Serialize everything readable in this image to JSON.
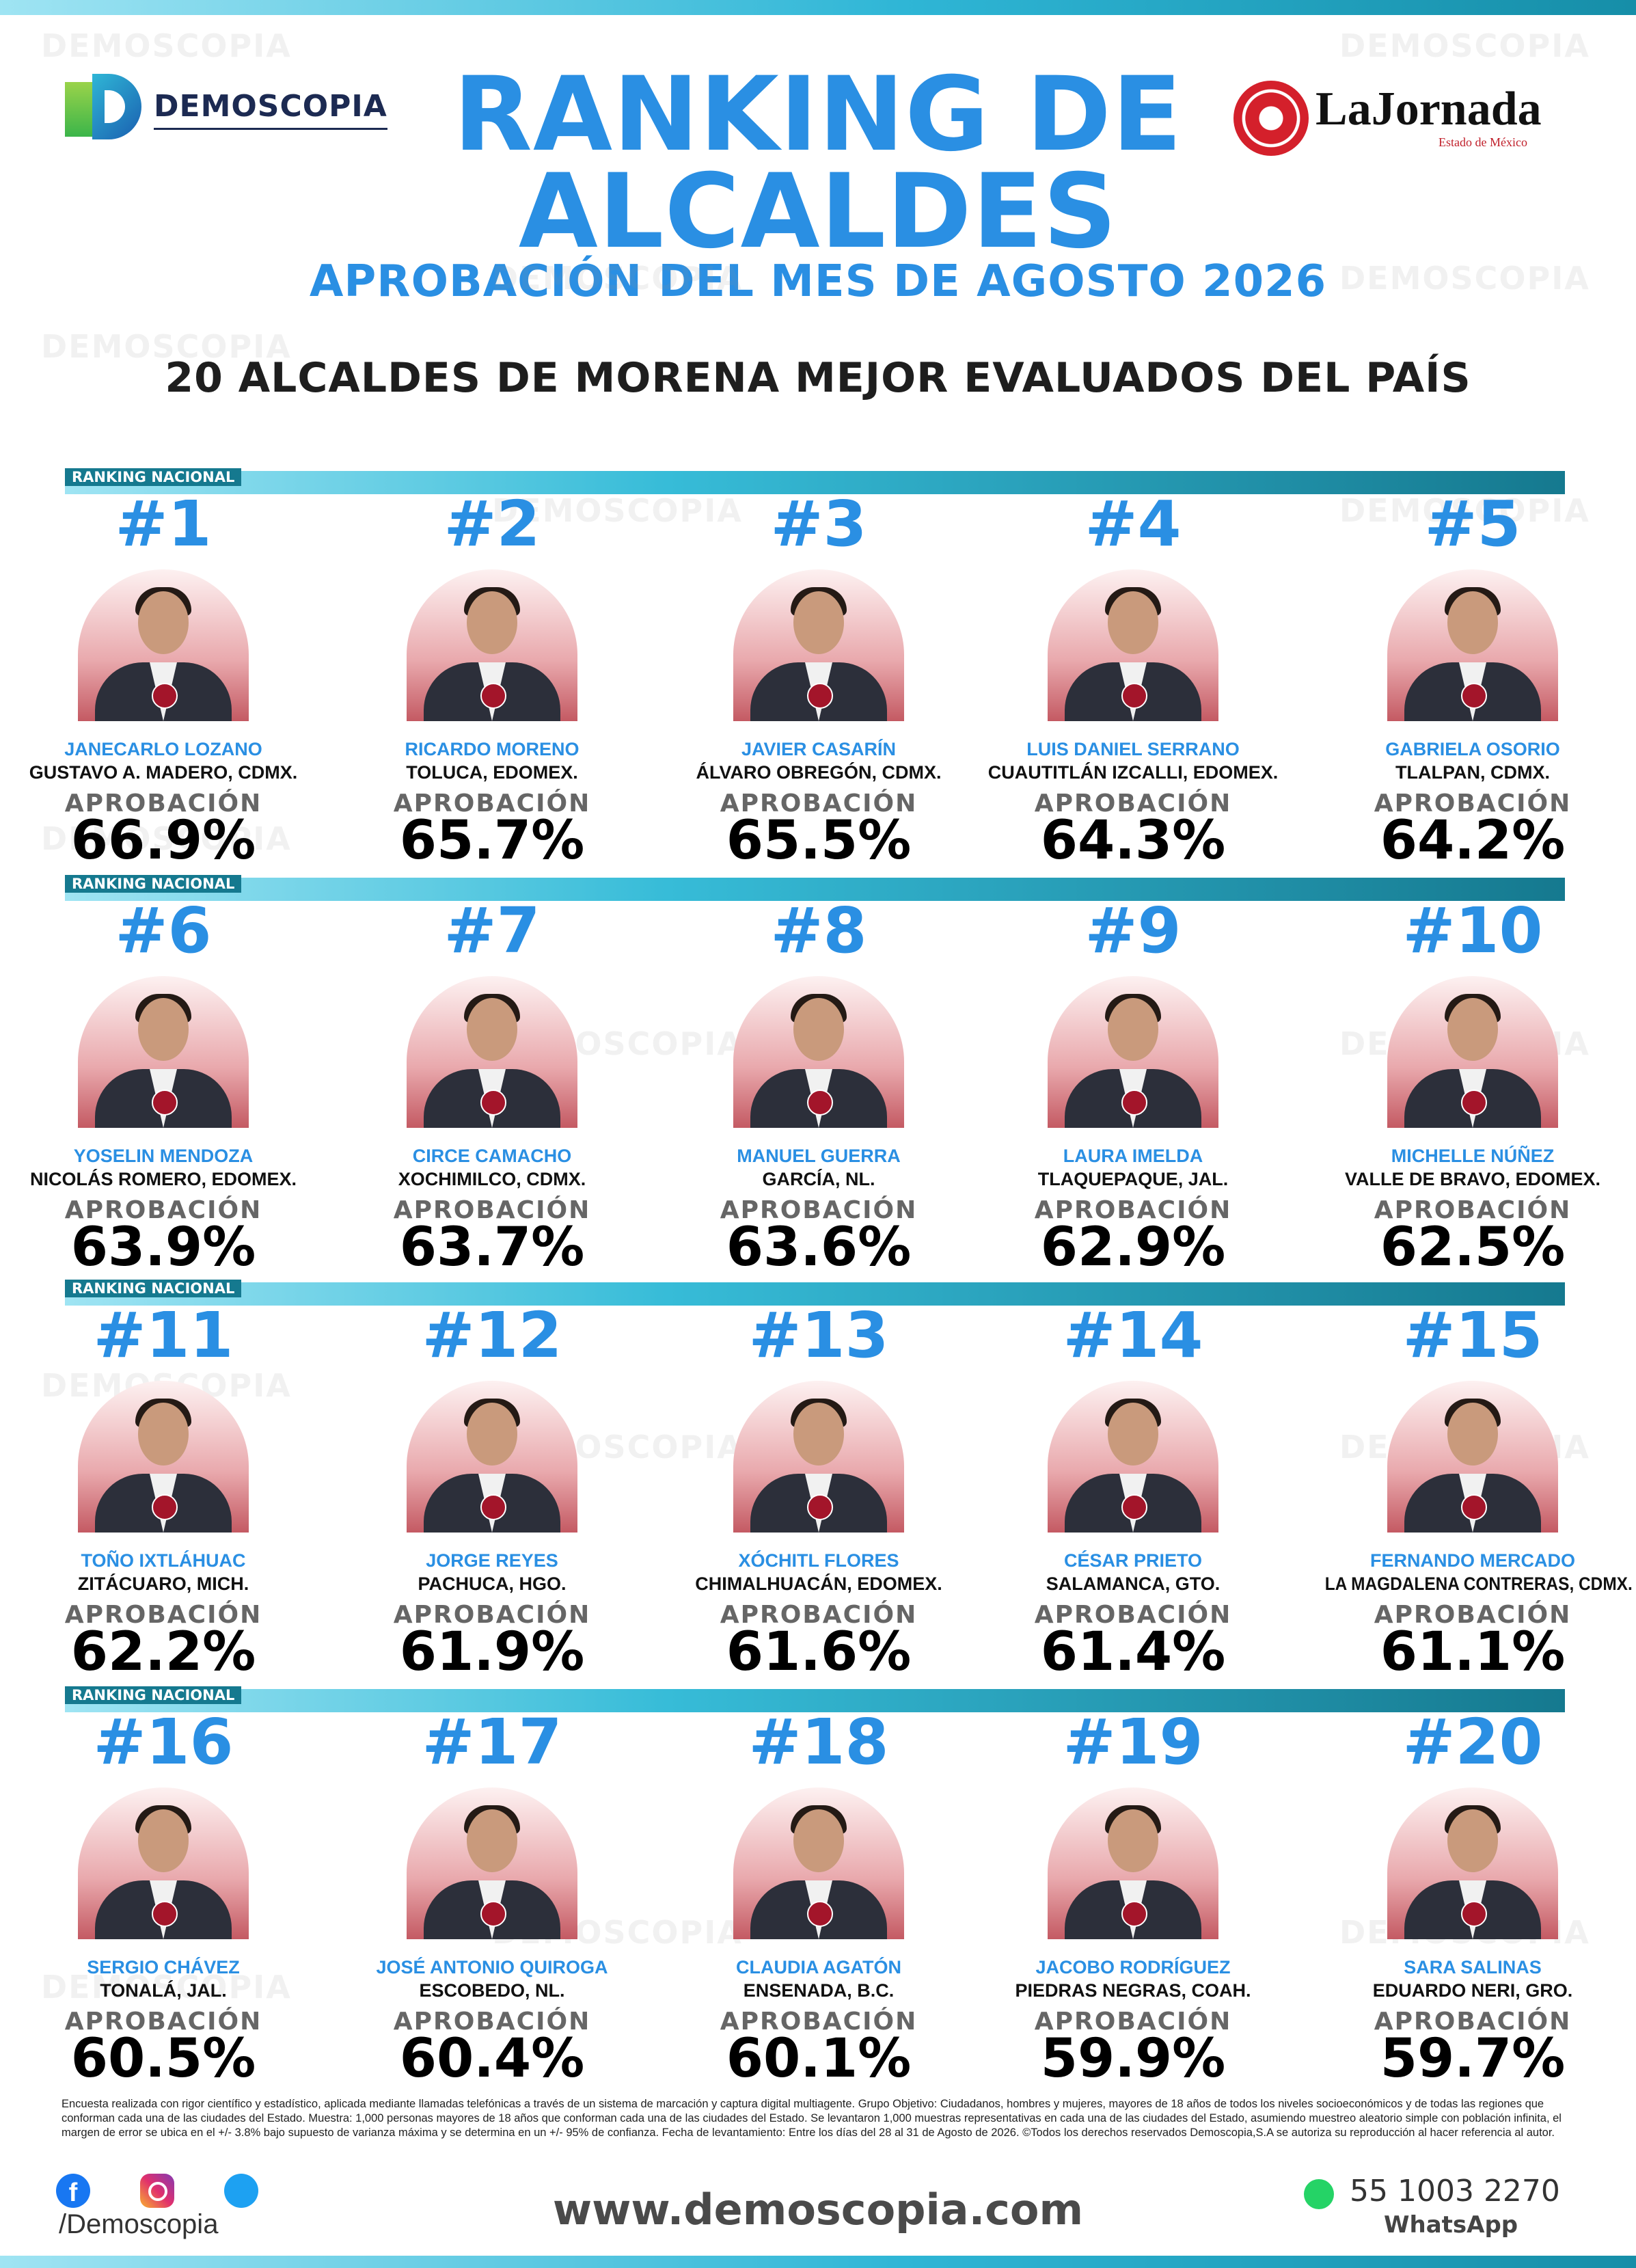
{
  "header": {
    "title_line1": "RANKING DE",
    "title_line2": "ALCALDES",
    "subtitle": "APROBACIÓN DEL MES DE AGOSTO 2026",
    "headline": "20 ALCALDES DE MORENA MEJOR EVALUADOS DEL PAÍS",
    "brand_left": "DEMOSCOPIA",
    "brand_right": "LaJornada",
    "brand_right_sub": "Estado de México"
  },
  "watermark": "DEMOSCOPIA",
  "sections": [
    {
      "label": "RANKING NACIONAL",
      "entries": [
        {
          "rank": "#1",
          "name": "JANECARLO LOZANO",
          "place": "GUSTAVO A. MADERO, CDMX.",
          "approval_label": "APROBACIÓN",
          "approval": "66.9%"
        },
        {
          "rank": "#2",
          "name": "RICARDO MORENO",
          "place": "TOLUCA, EDOMEX.",
          "approval_label": "APROBACIÓN",
          "approval": "65.7%"
        },
        {
          "rank": "#3",
          "name": "JAVIER CASARÍN",
          "place": "ÁLVARO OBREGÓN, CDMX.",
          "approval_label": "APROBACIÓN",
          "approval": "65.5%"
        },
        {
          "rank": "#4",
          "name": "LUIS DANIEL SERRANO",
          "place": "CUAUTITLÁN IZCALLI, EDOMEX.",
          "approval_label": "APROBACIÓN",
          "approval": "64.3%"
        },
        {
          "rank": "#5",
          "name": "GABRIELA OSORIO",
          "place": "TLALPAN, CDMX.",
          "approval_label": "APROBACIÓN",
          "approval": "64.2%"
        }
      ]
    },
    {
      "label": "RANKING NACIONAL",
      "entries": [
        {
          "rank": "#6",
          "name": "YOSELIN MENDOZA",
          "place": "NICOLÁS ROMERO, EDOMEX.",
          "approval_label": "APROBACIÓN",
          "approval": "63.9%"
        },
        {
          "rank": "#7",
          "name": "CIRCE CAMACHO",
          "place": "XOCHIMILCO, CDMX.",
          "approval_label": "APROBACIÓN",
          "approval": "63.7%"
        },
        {
          "rank": "#8",
          "name": "MANUEL GUERRA",
          "place": "GARCÍA, NL.",
          "approval_label": "APROBACIÓN",
          "approval": "63.6%"
        },
        {
          "rank": "#9",
          "name": "LAURA IMELDA",
          "place": "TLAQUEPAQUE, JAL.",
          "approval_label": "APROBACIÓN",
          "approval": "62.9%"
        },
        {
          "rank": "#10",
          "name": "MICHELLE NÚÑEZ",
          "place": "VALLE DE BRAVO, EDOMEX.",
          "approval_label": "APROBACIÓN",
          "approval": "62.5%"
        }
      ]
    },
    {
      "label": "RANKING NACIONAL",
      "entries": [
        {
          "rank": "#11",
          "name": "TOÑO IXTLÁHUAC",
          "place": "ZITÁCUARO, MICH.",
          "approval_label": "APROBACIÓN",
          "approval": "62.2%"
        },
        {
          "rank": "#12",
          "name": "JORGE REYES",
          "place": "PACHUCA, HGO.",
          "approval_label": "APROBACIÓN",
          "approval": "61.9%"
        },
        {
          "rank": "#13",
          "name": "XÓCHITL FLORES",
          "place": "CHIMALHUACÁN, EDOMEX.",
          "approval_label": "APROBACIÓN",
          "approval": "61.6%"
        },
        {
          "rank": "#14",
          "name": "CÉSAR PRIETO",
          "place": "SALAMANCA, GTO.",
          "approval_label": "APROBACIÓN",
          "approval": "61.4%"
        },
        {
          "rank": "#15",
          "name": "FERNANDO MERCADO",
          "place": "LA MAGDALENA CONTRERAS, CDMX.",
          "approval_label": "APROBACIÓN",
          "approval": "61.1%"
        }
      ]
    },
    {
      "label": "RANKING NACIONAL",
      "entries": [
        {
          "rank": "#16",
          "name": "SERGIO CHÁVEZ",
          "place": "TONALÁ, JAL.",
          "approval_label": "APROBACIÓN",
          "approval": "60.5%"
        },
        {
          "rank": "#17",
          "name": "JOSÉ ANTONIO QUIROGA",
          "place": "ESCOBEDO, NL.",
          "approval_label": "APROBACIÓN",
          "approval": "60.4%"
        },
        {
          "rank": "#18",
          "name": "CLAUDIA AGATÓN",
          "place": "ENSENADA, B.C.",
          "approval_label": "APROBACIÓN",
          "approval": "60.1%"
        },
        {
          "rank": "#19",
          "name": "JACOBO RODRÍGUEZ",
          "place": "PIEDRAS NEGRAS, COAH.",
          "approval_label": "APROBACIÓN",
          "approval": "59.9%"
        },
        {
          "rank": "#20",
          "name": "SARA SALINAS",
          "place": "EDUARDO NERI, GRO.",
          "approval_label": "APROBACIÓN",
          "approval": "59.7%"
        }
      ]
    }
  ],
  "footer": {
    "disclaimer": "Encuesta realizada con rigor científico y estadístico, aplicada mediante llamadas telefónicas a través de un sistema de marcación y captura digital multiagente. Grupo Objetivo: Ciudadanos, hombres y mujeres, mayores de 18 años de todos los niveles socioeconómicos y de todas las regiones que conforman cada una de las ciudades del Estado. Muestra: 1,000 personas mayores de 18 años que conforman cada una de las ciudades del Estado. Se levantaron 1,000 muestras representativas en cada una de las ciudades del Estado, asumiendo muestreo aleatorio simple con población infinita, el margen de error se ubica en el +/- 3.8% bajo supuesto de varianza máxima y se determina en un +/- 95% de confianza. Fecha de levantamiento: Entre los días del 28 al 31 de Agosto de 2026. ©Todos los derechos reservados Demoscopia,S.A se autoriza su reproducción al hacer referencia al autor.",
    "social_handle": "/Demoscopia",
    "website": "www.demoscopia.com",
    "phone": "55 1003 2270",
    "phone_label": "WhatsApp"
  }
}
